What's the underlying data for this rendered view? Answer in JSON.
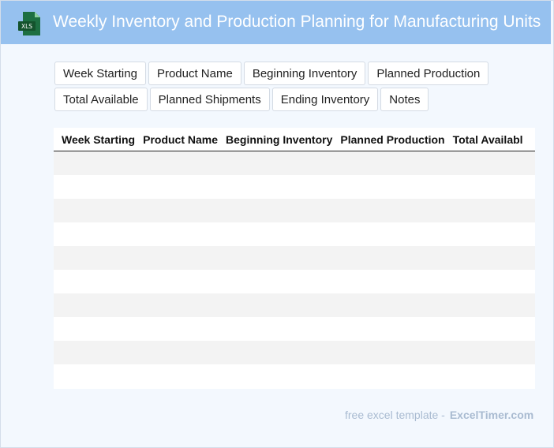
{
  "header": {
    "title": "Weekly Inventory and Production Planning for Manufacturing Units",
    "icon_label": "XLS",
    "icon_color": "#1d6f42",
    "background": "#96c1ef"
  },
  "chips": {
    "row1": [
      "Week Starting",
      "Product Name",
      "Beginning Inventory",
      "Planned Production"
    ],
    "row2": [
      "Total Available",
      "Planned Shipments",
      "Ending Inventory",
      "Notes"
    ]
  },
  "table": {
    "columns": [
      "Week Starting",
      "Product Name",
      "Beginning Inventory",
      "Planned Production",
      "Total Availabl"
    ],
    "row_count": 10
  },
  "footer": {
    "text": "free excel template -",
    "brand": "ExcelTimer.com"
  }
}
